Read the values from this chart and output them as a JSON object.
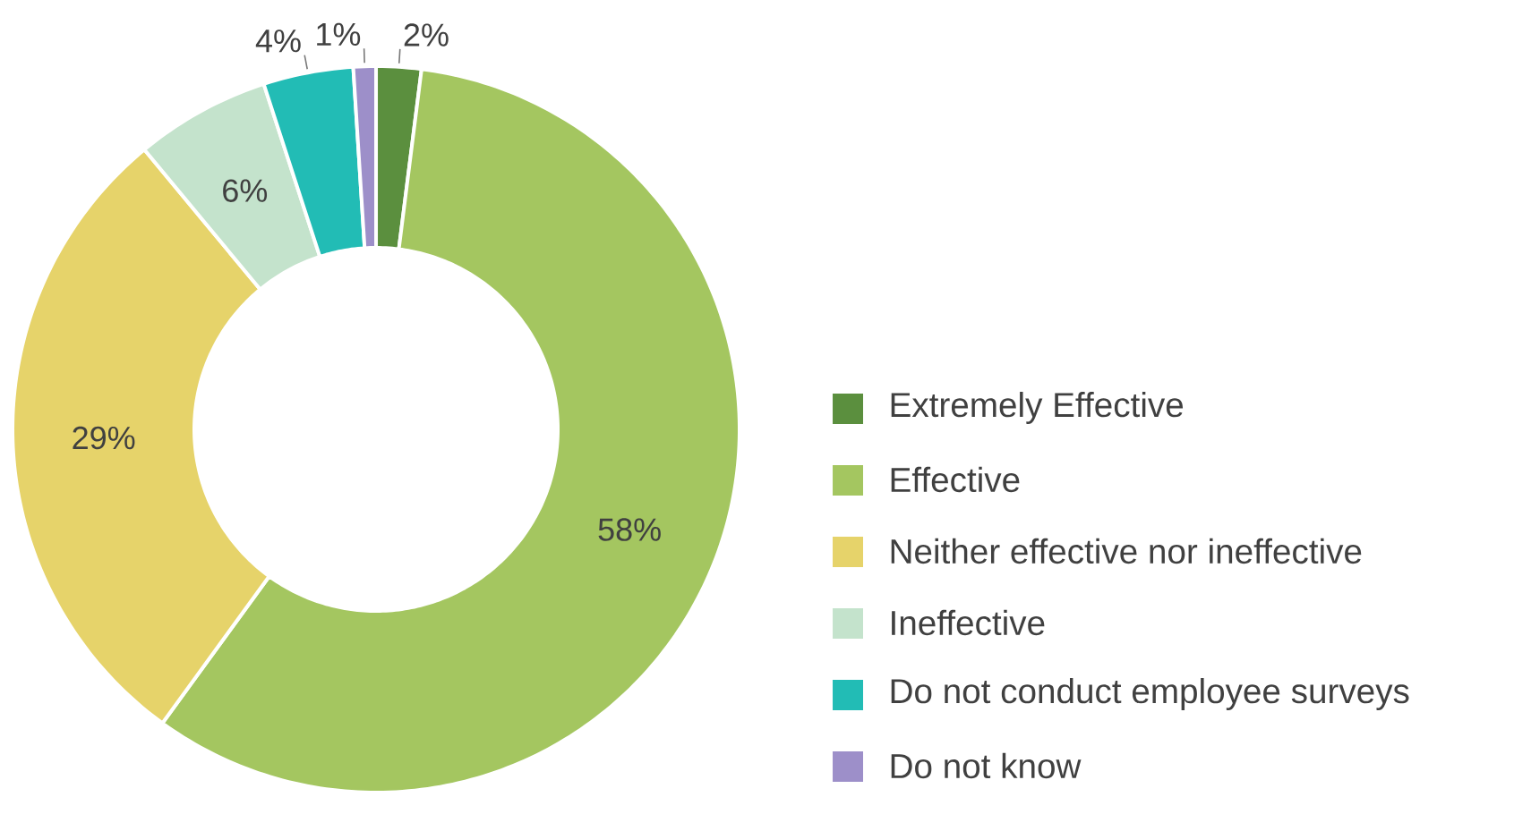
{
  "chart_data": {
    "type": "donut",
    "categories": [
      "Extremely Effective",
      "Effective",
      "Neither effective nor ineffective",
      "Ineffective",
      "Do not conduct employee surveys",
      "Do not know"
    ],
    "values": [
      2,
      58,
      29,
      6,
      4,
      1
    ],
    "value_labels": [
      "2%",
      "58%",
      "29%",
      "6%",
      "4%",
      "1%"
    ],
    "colors": [
      "#5b8f3e",
      "#a4c660",
      "#e6d36a",
      "#c4e3cc",
      "#22bcb5",
      "#9d8fc9"
    ],
    "legend": "right"
  }
}
